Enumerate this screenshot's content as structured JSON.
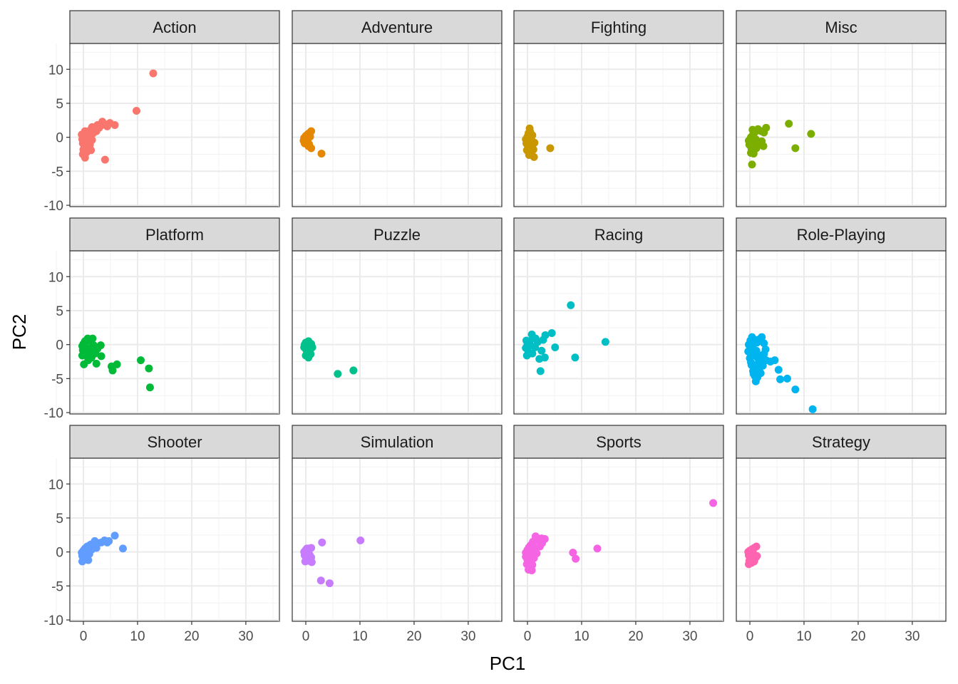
{
  "chart_data": {
    "type": "scatter",
    "xlabel": "PC1",
    "ylabel": "PC2",
    "xlim": [
      -2.5,
      36.2
    ],
    "ylim": [
      -10.2,
      13.8
    ],
    "x_ticks": [
      0,
      10,
      20,
      30
    ],
    "y_ticks": [
      10,
      5,
      0,
      -5,
      -10
    ],
    "x_tick_labels": [
      "0",
      "10",
      "20",
      "30"
    ],
    "y_tick_labels": [
      "10",
      "5",
      "0",
      "-5",
      "-10"
    ],
    "grid": true,
    "theme": "bw",
    "legend": "none",
    "facets": [
      {
        "name": "Action",
        "color": "#F8766D",
        "points": [
          [
            12.9,
            9.4
          ],
          [
            9.8,
            3.9
          ],
          [
            5.8,
            1.8
          ],
          [
            4.9,
            2.1
          ],
          [
            4.0,
            1.9
          ],
          [
            3.5,
            2.3
          ],
          [
            2.9,
            1.4
          ],
          [
            2.6,
            1.8
          ],
          [
            2.1,
            1.2
          ],
          [
            1.6,
            1.5
          ],
          [
            1.2,
            1.0
          ],
          [
            0.8,
            0.6
          ],
          [
            0.4,
            0.3
          ],
          [
            0.1,
            0.0
          ],
          [
            -0.2,
            -0.3
          ],
          [
            -0.1,
            -0.9
          ],
          [
            0.2,
            -1.3
          ],
          [
            0.7,
            -1.6
          ],
          [
            1.2,
            -1.1
          ],
          [
            1.6,
            -0.4
          ],
          [
            1.1,
            0.2
          ],
          [
            0.4,
            -0.6
          ],
          [
            0.0,
            -1.8
          ],
          [
            -0.1,
            -2.5
          ],
          [
            0.3,
            -3.0
          ],
          [
            4.0,
            -3.3
          ],
          [
            0.9,
            -0.2
          ],
          [
            1.8,
            0.6
          ],
          [
            2.4,
            0.9
          ],
          [
            0.6,
            -2.2
          ],
          [
            1.4,
            -1.9
          ],
          [
            0.3,
            0.9
          ],
          [
            -0.3,
            0.4
          ],
          [
            1.0,
            -0.8
          ],
          [
            3.2,
            1.7
          ],
          [
            4.4,
            1.6
          ]
        ]
      },
      {
        "name": "Adventure",
        "color": "#E58700",
        "points": [
          [
            1.0,
            0.9
          ],
          [
            0.6,
            0.6
          ],
          [
            0.3,
            0.4
          ],
          [
            0.0,
            0.2
          ],
          [
            -0.3,
            -0.1
          ],
          [
            -0.4,
            -0.5
          ],
          [
            -0.2,
            -0.9
          ],
          [
            0.3,
            -0.6
          ],
          [
            0.6,
            -1.0
          ],
          [
            0.5,
            -1.3
          ],
          [
            1.0,
            -1.6
          ],
          [
            2.9,
            -2.4
          ],
          [
            0.2,
            -0.2
          ],
          [
            0.8,
            0.1
          ]
        ]
      },
      {
        "name": "Fighting",
        "color": "#C99800",
        "points": [
          [
            0.4,
            1.3
          ],
          [
            0.2,
            0.6
          ],
          [
            0.0,
            0.1
          ],
          [
            -0.3,
            -0.3
          ],
          [
            -0.2,
            -0.9
          ],
          [
            0.1,
            -1.4
          ],
          [
            0.6,
            -1.0
          ],
          [
            0.8,
            -0.5
          ],
          [
            1.3,
            -0.8
          ],
          [
            1.1,
            -1.8
          ],
          [
            0.6,
            -2.1
          ],
          [
            1.2,
            -2.9
          ],
          [
            4.2,
            -1.6
          ],
          [
            0.3,
            -2.6
          ],
          [
            0.9,
            0.3
          ],
          [
            -0.1,
            -1.9
          ],
          [
            0.5,
            0.8
          ]
        ]
      },
      {
        "name": "Misc",
        "color": "#7CAE00",
        "points": [
          [
            7.2,
            2.0
          ],
          [
            11.3,
            0.5
          ],
          [
            8.4,
            -1.6
          ],
          [
            0.4,
            -4.0
          ],
          [
            3.0,
            1.4
          ],
          [
            2.6,
            0.7
          ],
          [
            2.1,
            0.9
          ],
          [
            1.5,
            1.2
          ],
          [
            1.0,
            0.8
          ],
          [
            0.6,
            0.4
          ],
          [
            0.2,
            0.0
          ],
          [
            -0.2,
            -0.5
          ],
          [
            -0.1,
            -1.1
          ],
          [
            0.3,
            -1.7
          ],
          [
            0.2,
            -2.3
          ],
          [
            0.7,
            -2.4
          ],
          [
            1.2,
            -1.6
          ],
          [
            1.7,
            -1.0
          ],
          [
            2.5,
            -1.3
          ],
          [
            1.1,
            -0.3
          ],
          [
            0.5,
            1.1
          ],
          [
            2.2,
            -0.6
          ],
          [
            0.8,
            -0.9
          ]
        ]
      },
      {
        "name": "Platform",
        "color": "#00BA38",
        "points": [
          [
            0.8,
            0.9
          ],
          [
            0.3,
            0.5
          ],
          [
            0.0,
            0.1
          ],
          [
            -0.2,
            -0.2
          ],
          [
            -0.1,
            -0.8
          ],
          [
            0.2,
            -1.2
          ],
          [
            0.6,
            -1.6
          ],
          [
            1.0,
            -1.1
          ],
          [
            1.4,
            -0.5
          ],
          [
            1.9,
            -0.1
          ],
          [
            3.2,
            -0.1
          ],
          [
            2.2,
            -1.3
          ],
          [
            1.5,
            -1.9
          ],
          [
            0.1,
            -2.9
          ],
          [
            2.4,
            -2.8
          ],
          [
            3.3,
            -1.7
          ],
          [
            5.2,
            -3.2
          ],
          [
            5.4,
            -3.8
          ],
          [
            6.2,
            -2.9
          ],
          [
            10.6,
            -2.3
          ],
          [
            12.1,
            -3.5
          ],
          [
            12.3,
            -6.3
          ],
          [
            1.2,
            0.6
          ],
          [
            0.5,
            -0.4
          ],
          [
            -0.2,
            -1.6
          ],
          [
            1.7,
            0.9
          ],
          [
            2.6,
            -0.6
          ],
          [
            0.9,
            -2.3
          ]
        ]
      },
      {
        "name": "Puzzle",
        "color": "#00C08B",
        "points": [
          [
            0.0,
            0.3
          ],
          [
            -0.2,
            0.0
          ],
          [
            -0.3,
            -0.4
          ],
          [
            0.1,
            -0.8
          ],
          [
            0.4,
            -1.2
          ],
          [
            0.0,
            -1.6
          ],
          [
            0.5,
            -1.9
          ],
          [
            0.9,
            -1.4
          ],
          [
            1.2,
            -0.4
          ],
          [
            1.0,
            0.1
          ],
          [
            0.5,
            0.5
          ],
          [
            5.9,
            -4.3
          ],
          [
            8.8,
            -3.8
          ],
          [
            0.8,
            -0.8
          ]
        ]
      },
      {
        "name": "Racing",
        "color": "#00BFC4",
        "points": [
          [
            8.0,
            5.8
          ],
          [
            4.5,
            1.7
          ],
          [
            14.4,
            0.4
          ],
          [
            5.1,
            -0.4
          ],
          [
            8.8,
            -1.9
          ],
          [
            2.4,
            -3.9
          ],
          [
            3.2,
            -1.9
          ],
          [
            2.2,
            -2.1
          ],
          [
            2.6,
            -0.9
          ],
          [
            1.9,
            0.4
          ],
          [
            1.5,
            0.9
          ],
          [
            0.8,
            1.5
          ],
          [
            0.4,
            0.5
          ],
          [
            0.0,
            0.0
          ],
          [
            -0.3,
            -0.5
          ],
          [
            0.2,
            -1.1
          ],
          [
            -0.1,
            -1.6
          ],
          [
            0.9,
            -1.3
          ],
          [
            1.4,
            -0.4
          ],
          [
            0.6,
            -0.1
          ],
          [
            3.3,
            1.4
          ],
          [
            2.9,
            0.7
          ],
          [
            -0.2,
            0.6
          ]
        ]
      },
      {
        "name": "Role-Playing",
        "color": "#00B4F0",
        "points": [
          [
            11.6,
            -9.5
          ],
          [
            8.4,
            -6.6
          ],
          [
            6.9,
            -5.0
          ],
          [
            5.3,
            -3.7
          ],
          [
            5.6,
            -5.1
          ],
          [
            4.6,
            -2.3
          ],
          [
            3.8,
            -2.5
          ],
          [
            3.0,
            -2.3
          ],
          [
            2.2,
            -2.5
          ],
          [
            1.6,
            -2.7
          ],
          [
            1.0,
            -3.2
          ],
          [
            0.6,
            -3.9
          ],
          [
            0.9,
            -4.6
          ],
          [
            1.1,
            -5.4
          ],
          [
            0.3,
            -3.0
          ],
          [
            0.0,
            -2.0
          ],
          [
            -0.3,
            -1.0
          ],
          [
            -0.2,
            0.0
          ],
          [
            0.1,
            0.6
          ],
          [
            0.4,
            1.1
          ],
          [
            0.9,
            0.7
          ],
          [
            1.3,
            0.3
          ],
          [
            1.8,
            0.8
          ],
          [
            2.2,
            1.1
          ],
          [
            2.6,
            0.2
          ],
          [
            2.9,
            -0.7
          ],
          [
            2.6,
            -1.4
          ],
          [
            1.9,
            -1.6
          ],
          [
            1.4,
            -1.9
          ],
          [
            0.8,
            -1.2
          ],
          [
            0.5,
            -0.4
          ],
          [
            1.2,
            -0.9
          ],
          [
            0.2,
            -2.6
          ],
          [
            1.7,
            -3.8
          ],
          [
            2.0,
            -4.2
          ],
          [
            0.4,
            -1.6
          ],
          [
            2.4,
            -3.1
          ],
          [
            0.7,
            -4.3
          ],
          [
            1.4,
            -4.8
          ]
        ]
      },
      {
        "name": "Shooter",
        "color": "#619CFF",
        "points": [
          [
            5.8,
            2.4
          ],
          [
            7.3,
            0.5
          ],
          [
            4.7,
            1.6
          ],
          [
            3.9,
            1.7
          ],
          [
            3.3,
            1.4
          ],
          [
            2.6,
            1.3
          ],
          [
            2.1,
            1.6
          ],
          [
            1.7,
            0.9
          ],
          [
            1.2,
            1.0
          ],
          [
            0.7,
            0.8
          ],
          [
            0.3,
            0.5
          ],
          [
            0.0,
            0.2
          ],
          [
            -0.3,
            -0.1
          ],
          [
            -0.2,
            -0.6
          ],
          [
            0.1,
            -1.1
          ],
          [
            -0.2,
            -1.4
          ],
          [
            0.6,
            -0.9
          ],
          [
            1.1,
            -0.3
          ],
          [
            0.9,
            -1.2
          ],
          [
            1.6,
            0.4
          ],
          [
            0.4,
            -0.5
          ],
          [
            2.4,
            0.6
          ],
          [
            4.4,
            1.4
          ],
          [
            1.4,
            1.1
          ]
        ]
      },
      {
        "name": "Simulation",
        "color": "#C77CFF",
        "points": [
          [
            10.1,
            1.7
          ],
          [
            3.0,
            1.4
          ],
          [
            1.0,
            0.6
          ],
          [
            0.5,
            0.5
          ],
          [
            0.0,
            0.3
          ],
          [
            -0.3,
            0.0
          ],
          [
            -0.2,
            -0.5
          ],
          [
            0.1,
            -1.0
          ],
          [
            -0.1,
            -1.4
          ],
          [
            0.6,
            -1.3
          ],
          [
            1.0,
            -0.8
          ],
          [
            1.1,
            -1.5
          ],
          [
            0.4,
            -0.2
          ],
          [
            2.8,
            -4.2
          ],
          [
            4.4,
            -4.6
          ],
          [
            0.7,
            -0.4
          ],
          [
            0.2,
            0.5
          ]
        ]
      },
      {
        "name": "Sports",
        "color": "#F564E3",
        "points": [
          [
            34.3,
            7.2
          ],
          [
            12.9,
            0.5
          ],
          [
            8.4,
            -0.1
          ],
          [
            8.9,
            -1.0
          ],
          [
            3.2,
            1.9
          ],
          [
            2.6,
            2.0
          ],
          [
            2.1,
            1.7
          ],
          [
            1.5,
            2.3
          ],
          [
            1.0,
            1.5
          ],
          [
            0.6,
            1.0
          ],
          [
            0.3,
            0.7
          ],
          [
            0.0,
            0.3
          ],
          [
            -0.3,
            -0.1
          ],
          [
            -0.3,
            -0.7
          ],
          [
            0.0,
            -1.2
          ],
          [
            0.3,
            -1.6
          ],
          [
            0.5,
            -2.3
          ],
          [
            0.2,
            -2.6
          ],
          [
            0.9,
            -1.9
          ],
          [
            1.2,
            -0.9
          ],
          [
            1.7,
            -0.2
          ],
          [
            2.3,
            0.8
          ],
          [
            1.0,
            0.2
          ],
          [
            0.6,
            -0.6
          ],
          [
            -0.1,
            -1.8
          ],
          [
            0.8,
            -2.7
          ],
          [
            2.7,
            1.3
          ],
          [
            1.9,
            2.0
          ],
          [
            1.3,
            0.7
          ]
        ]
      },
      {
        "name": "Strategy",
        "color": "#FF64B0",
        "points": [
          [
            1.2,
            0.8
          ],
          [
            0.8,
            0.6
          ],
          [
            0.4,
            0.4
          ],
          [
            0.0,
            0.2
          ],
          [
            -0.3,
            0.0
          ],
          [
            -0.2,
            -0.5
          ],
          [
            0.2,
            -0.9
          ],
          [
            -0.1,
            -1.3
          ],
          [
            0.3,
            -1.6
          ],
          [
            0.8,
            -1.4
          ],
          [
            1.1,
            -0.8
          ],
          [
            0.6,
            -0.2
          ],
          [
            -0.2,
            -1.8
          ],
          [
            1.3,
            -0.6
          ]
        ]
      }
    ]
  }
}
